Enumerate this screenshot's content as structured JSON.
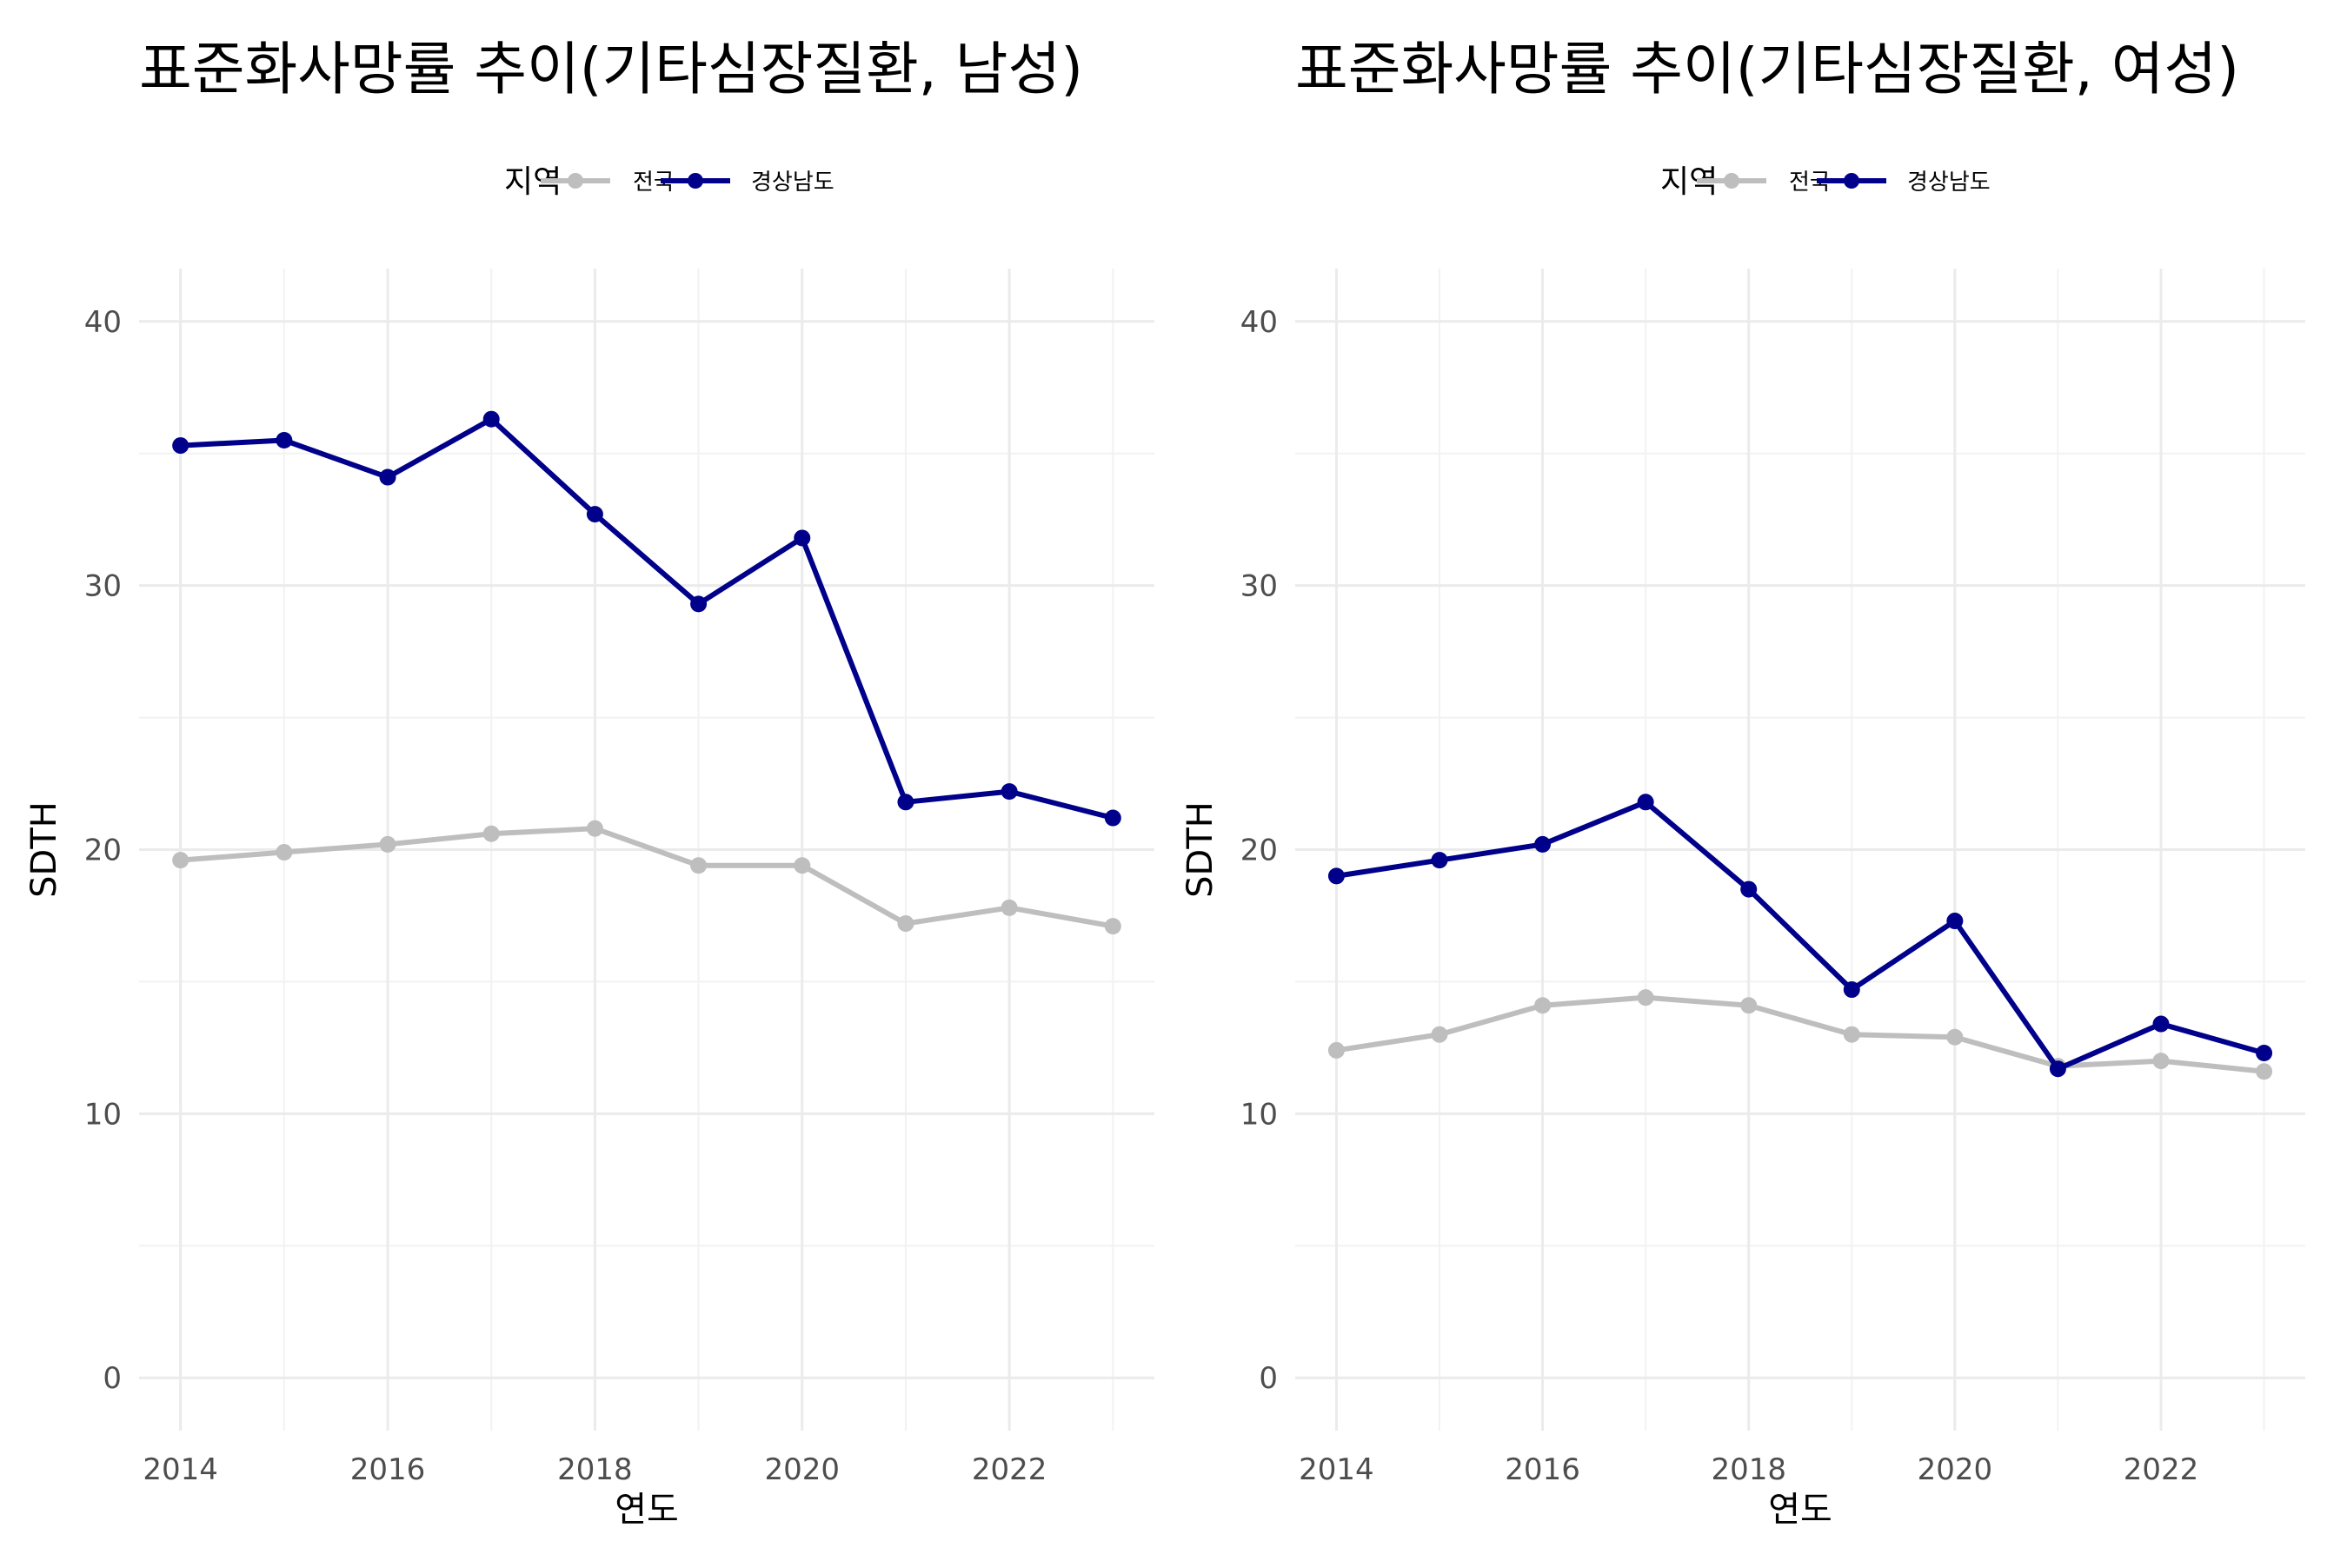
{
  "chart_data": [
    {
      "type": "line",
      "title": "표준화사망률 추이(기타심장질환, 남성)",
      "xlabel": "연도",
      "ylabel": "SDTH",
      "xlim": [
        2013.6,
        2023.4
      ],
      "ylim": [
        -2,
        42
      ],
      "x_ticks": [
        "2014",
        "2016",
        "2018",
        "2020",
        "2022"
      ],
      "y_ticks": [
        "0",
        "10",
        "20",
        "30",
        "40"
      ],
      "legend": {
        "title": "지역",
        "position": "top"
      },
      "grid": true,
      "x": [
        2014,
        2015,
        2016,
        2017,
        2018,
        2019,
        2020,
        2021,
        2022,
        2023
      ],
      "series": [
        {
          "name": "전국",
          "color": "#bebebe",
          "values": [
            19.6,
            19.9,
            20.2,
            20.6,
            20.8,
            19.4,
            19.4,
            17.2,
            17.8,
            17.1
          ]
        },
        {
          "name": "경상남도",
          "color": "#00008b",
          "values": [
            35.3,
            35.5,
            34.1,
            36.3,
            32.7,
            29.3,
            31.8,
            21.8,
            22.2,
            21.2
          ]
        }
      ]
    },
    {
      "type": "line",
      "title": "표준화사망률 추이(기타심장질환, 여성)",
      "xlabel": "연도",
      "ylabel": "SDTH",
      "xlim": [
        2013.6,
        2023.4
      ],
      "ylim": [
        -2,
        42
      ],
      "x_ticks": [
        "2014",
        "2016",
        "2018",
        "2020",
        "2022"
      ],
      "y_ticks": [
        "0",
        "10",
        "20",
        "30",
        "40"
      ],
      "legend": {
        "title": "지역",
        "position": "top"
      },
      "grid": true,
      "x": [
        2014,
        2015,
        2016,
        2017,
        2018,
        2019,
        2020,
        2021,
        2022,
        2023
      ],
      "series": [
        {
          "name": "전국",
          "color": "#bebebe",
          "values": [
            12.4,
            13.0,
            14.1,
            14.4,
            14.1,
            13.0,
            12.9,
            11.8,
            12.0,
            11.6
          ]
        },
        {
          "name": "경상남도",
          "color": "#00008b",
          "values": [
            19.0,
            19.6,
            20.2,
            21.8,
            18.5,
            14.7,
            17.3,
            11.7,
            13.4,
            12.3
          ]
        }
      ]
    }
  ]
}
